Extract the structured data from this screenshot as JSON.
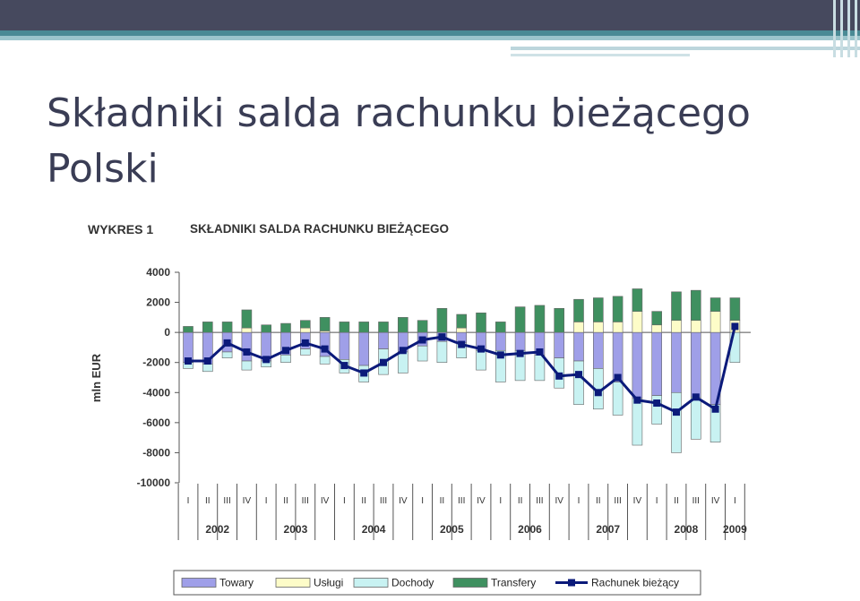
{
  "slide": {
    "title": "Składniki salda rachunku bieżącego Polski"
  },
  "figure": {
    "label": "WYKRES 1",
    "title": "SKŁADNIKI SALDA RACHUNKU BIEŻĄCEGO"
  },
  "colors": {
    "towary": "#9f9fe8",
    "uslugi": "#fdfcc8",
    "dochody": "#c8f2f2",
    "transfery": "#3f9060",
    "rachunek": "#0b1a7a",
    "border": "#666666"
  },
  "chart_data": {
    "type": "bar",
    "stacked": true,
    "ylabel": "mln EUR",
    "ylim": [
      -10000,
      4000
    ],
    "yticks": [
      4000,
      2000,
      0,
      -2000,
      -4000,
      -6000,
      -8000,
      -10000
    ],
    "categories": [
      "I",
      "II",
      "III",
      "IV",
      "I",
      "II",
      "III",
      "IV",
      "I",
      "II",
      "III",
      "IV",
      "I",
      "II",
      "III",
      "IV",
      "I",
      "II",
      "III",
      "IV",
      "I",
      "II",
      "III",
      "IV",
      "I",
      "II",
      "III",
      "IV",
      "I"
    ],
    "years": [
      {
        "label": "2002",
        "quarters": 4
      },
      {
        "label": "2003",
        "quarters": 4
      },
      {
        "label": "2004",
        "quarters": 4
      },
      {
        "label": "2005",
        "quarters": 4
      },
      {
        "label": "2006",
        "quarters": 4
      },
      {
        "label": "2007",
        "quarters": 4
      },
      {
        "label": "2008",
        "quarters": 4
      },
      {
        "label": "2009",
        "quarters": 1
      }
    ],
    "series": [
      {
        "name": "Towary",
        "kind": "bar",
        "values": [
          -2000,
          -2100,
          -1300,
          -1900,
          -1900,
          -1500,
          -1100,
          -1600,
          -1800,
          -2200,
          -1100,
          -1300,
          -900,
          -600,
          -700,
          -1200,
          -1200,
          -1200,
          -1500,
          -1700,
          -1900,
          -2400,
          -3300,
          -4400,
          -4200,
          -4000,
          -4300,
          -4800,
          0
        ]
      },
      {
        "name": "Usługi",
        "kind": "bar",
        "values": [
          0,
          0,
          0,
          300,
          0,
          0,
          300,
          100,
          0,
          0,
          0,
          0,
          0,
          0,
          300,
          0,
          0,
          0,
          0,
          0,
          700,
          700,
          700,
          1400,
          500,
          800,
          800,
          1400,
          800
        ]
      },
      {
        "name": "Dochody",
        "kind": "bar",
        "values": [
          -400,
          -500,
          -400,
          -600,
          -400,
          -500,
          -400,
          -500,
          -900,
          -1100,
          -1700,
          -1400,
          -1000,
          -1400,
          -1000,
          -1300,
          -2100,
          -2000,
          -1700,
          -2000,
          -2900,
          -2700,
          -2200,
          -3100,
          -1900,
          -4000,
          -2800,
          -2500,
          -2000
        ]
      },
      {
        "name": "Transfery",
        "kind": "bar",
        "values": [
          400,
          700,
          700,
          1200,
          500,
          600,
          500,
          900,
          700,
          700,
          700,
          1000,
          800,
          1600,
          900,
          1300,
          700,
          1700,
          1800,
          1600,
          1500,
          1600,
          1700,
          1500,
          900,
          1900,
          2000,
          900,
          1500
        ]
      },
      {
        "name": "Rachunek bieżący",
        "kind": "line",
        "values": [
          -1900,
          -1900,
          -700,
          -1300,
          -1800,
          -1200,
          -700,
          -1100,
          -2200,
          -2700,
          -2000,
          -1200,
          -500,
          -300,
          -800,
          -1100,
          -1500,
          -1400,
          -1300,
          -2900,
          -2800,
          -4000,
          -3000,
          -4500,
          -4700,
          -5300,
          -4300,
          -5100,
          400
        ]
      }
    ],
    "legend": [
      "Towary",
      "Usługi",
      "Dochody",
      "Transfery",
      "Rachunek bieżący"
    ],
    "legend_position": "bottom",
    "grid": false
  }
}
